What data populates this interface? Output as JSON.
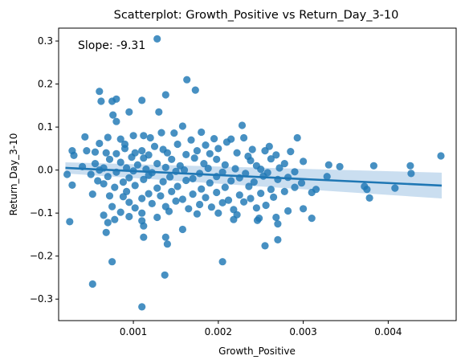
{
  "chart_data": {
    "type": "scatter",
    "title": "Scatterplot: Growth_Positive vs Return_Day_3-10",
    "xlabel": "Growth_Positive",
    "ylabel": "Return_Day_3-10",
    "annotation": "Slope: -9.31",
    "xlim": [
      0.00012,
      0.0048
    ],
    "ylim": [
      -0.35,
      0.33
    ],
    "x_ticks": [
      0.001,
      0.002,
      0.003,
      0.004
    ],
    "x_tick_labels": [
      "0.001",
      "0.002",
      "0.003",
      "0.004"
    ],
    "y_ticks": [
      -0.3,
      -0.2,
      -0.1,
      0.0,
      0.1,
      0.2,
      0.3
    ],
    "y_tick_labels": [
      "−0.3",
      "−0.2",
      "−0.1",
      "0.0",
      "0.1",
      "0.2",
      "0.3"
    ],
    "grid": false,
    "colors": {
      "points": "#1f77b4",
      "line": "#1f77b4",
      "band": "#a6c8e6"
    },
    "regression": {
      "x": [
        0.0002,
        0.00463
      ],
      "y": [
        0.005,
        -0.036
      ],
      "ci_upper": [
        0.018,
        -0.006
      ],
      "ci_lower": [
        -0.008,
        -0.066
      ]
    },
    "series": [
      {
        "points": [
          [
            0.00128,
            0.305
          ],
          [
            0.00163,
            0.21
          ],
          [
            0.00173,
            0.186
          ],
          [
            0.0006,
            0.183
          ],
          [
            0.0008,
            0.165
          ],
          [
            0.00062,
            0.16
          ],
          [
            0.00075,
            0.16
          ],
          [
            0.0011,
            0.162
          ],
          [
            0.00138,
            0.175
          ],
          [
            0.0013,
            0.135
          ],
          [
            0.00095,
            0.135
          ],
          [
            0.00076,
            0.128
          ],
          [
            0.0008,
            0.113
          ],
          [
            0.00228,
            0.104
          ],
          [
            0.00158,
            0.102
          ],
          [
            0.0018,
            0.088
          ],
          [
            0.00112,
            0.08
          ],
          [
            0.00133,
            0.087
          ],
          [
            0.00148,
            0.086
          ],
          [
            0.00043,
            0.077
          ],
          [
            0.0007,
            0.076
          ],
          [
            0.00085,
            0.072
          ],
          [
            0.001,
            0.08
          ],
          [
            0.0012,
            0.075
          ],
          [
            0.00168,
            0.07
          ],
          [
            0.00195,
            0.073
          ],
          [
            0.00215,
            0.072
          ],
          [
            0.0023,
            0.075
          ],
          [
            0.00293,
            0.075
          ],
          [
            0.0006,
            0.062
          ],
          [
            0.0009,
            0.06
          ],
          [
            0.00125,
            0.055
          ],
          [
            0.00152,
            0.06
          ],
          [
            0.00185,
            0.058
          ],
          [
            0.0021,
            0.065
          ],
          [
            0.0026,
            0.055
          ],
          [
            0.0009,
            0.05
          ],
          [
            0.0011,
            0.045
          ],
          [
            0.00135,
            0.048
          ],
          [
            0.00175,
            0.045
          ],
          [
            0.002,
            0.05
          ],
          [
            0.0024,
            0.048
          ],
          [
            0.00255,
            0.045
          ],
          [
            0.00285,
            0.043
          ],
          [
            0.00028,
            0.045
          ],
          [
            0.00045,
            0.045
          ],
          [
            0.00055,
            0.042
          ],
          [
            0.00068,
            0.04
          ],
          [
            0.0008,
            0.038
          ],
          [
            0.00102,
            0.04
          ],
          [
            0.00118,
            0.035
          ],
          [
            0.0014,
            0.04
          ],
          [
            0.00162,
            0.036
          ],
          [
            0.0019,
            0.038
          ],
          [
            0.00222,
            0.04
          ],
          [
            0.00235,
            0.032
          ],
          [
            0.00268,
            0.035
          ],
          [
            0.00462,
            0.033
          ],
          [
            0.0003,
            0.034
          ],
          [
            0.00072,
            0.025
          ],
          [
            0.00098,
            0.03
          ],
          [
            0.00112,
            0.028
          ],
          [
            0.00145,
            0.025
          ],
          [
            0.00172,
            0.028
          ],
          [
            0.00198,
            0.025
          ],
          [
            0.00238,
            0.022
          ],
          [
            0.00262,
            0.026
          ],
          [
            0.003,
            0.02
          ],
          [
            0.00055,
            0.015
          ],
          [
            0.00085,
            0.018
          ],
          [
            0.00105,
            0.012
          ],
          [
            0.00128,
            0.015
          ],
          [
            0.00155,
            0.01
          ],
          [
            0.00183,
            0.015
          ],
          [
            0.00208,
            0.012
          ],
          [
            0.00245,
            0.01
          ],
          [
            0.00278,
            0.015
          ],
          [
            0.0033,
            0.012
          ],
          [
            0.00343,
            0.008
          ],
          [
            0.00383,
            0.01
          ],
          [
            0.00426,
            0.01
          ],
          [
            0.0004,
            0.008
          ],
          [
            0.00065,
            0.005
          ],
          [
            0.00092,
            0.005
          ],
          [
            0.00115,
            0.002
          ],
          [
            0.00138,
            0.006
          ],
          [
            0.0016,
            0.0
          ],
          [
            0.00188,
            0.004
          ],
          [
            0.0022,
            0.003
          ],
          [
            0.0025,
            0.002
          ],
          [
            0.00272,
            0.005
          ],
          [
            0.0006,
            0.0
          ],
          [
            0.0008,
            -0.005
          ],
          [
            0.001,
            -0.002
          ],
          [
            0.00122,
            -0.006
          ],
          [
            0.0015,
            -0.003
          ],
          [
            0.00178,
            -0.008
          ],
          [
            0.00205,
            -0.005
          ],
          [
            0.00232,
            -0.008
          ],
          [
            0.00258,
            -0.006
          ],
          [
            0.0029,
            -0.004
          ],
          [
            0.00022,
            -0.01
          ],
          [
            0.0005,
            -0.01
          ],
          [
            0.00427,
            -0.008
          ],
          [
            0.0007,
            -0.015
          ],
          [
            0.00095,
            -0.018
          ],
          [
            0.00118,
            -0.012
          ],
          [
            0.00143,
            -0.016
          ],
          [
            0.0017,
            -0.02
          ],
          [
            0.00198,
            -0.015
          ],
          [
            0.00225,
            -0.018
          ],
          [
            0.00253,
            -0.014
          ],
          [
            0.00282,
            -0.017
          ],
          [
            0.00328,
            -0.015
          ],
          [
            0.00058,
            -0.025
          ],
          [
            0.00088,
            -0.028
          ],
          [
            0.00112,
            -0.022
          ],
          [
            0.00135,
            -0.027
          ],
          [
            0.00162,
            -0.024
          ],
          [
            0.0019,
            -0.03
          ],
          [
            0.00215,
            -0.025
          ],
          [
            0.00242,
            -0.028
          ],
          [
            0.0027,
            -0.022
          ],
          [
            0.00298,
            -0.03
          ],
          [
            0.00028,
            -0.035
          ],
          [
            0.00065,
            -0.032
          ],
          [
            0.00372,
            -0.038
          ],
          [
            0.00078,
            -0.04
          ],
          [
            0.00102,
            -0.036
          ],
          [
            0.00128,
            -0.042
          ],
          [
            0.00152,
            -0.038
          ],
          [
            0.0018,
            -0.044
          ],
          [
            0.00208,
            -0.04
          ],
          [
            0.00236,
            -0.038
          ],
          [
            0.00262,
            -0.045
          ],
          [
            0.0029,
            -0.04
          ],
          [
            0.00408,
            -0.042
          ],
          [
            0.00375,
            -0.045
          ],
          [
            0.00315,
            -0.045
          ],
          [
            0.00092,
            -0.05
          ],
          [
            0.00118,
            -0.055
          ],
          [
            0.00145,
            -0.05
          ],
          [
            0.0017,
            -0.056
          ],
          [
            0.00198,
            -0.052
          ],
          [
            0.00225,
            -0.058
          ],
          [
            0.0025,
            -0.054
          ],
          [
            0.00278,
            -0.05
          ],
          [
            0.0031,
            -0.052
          ],
          [
            0.00052,
            -0.056
          ],
          [
            0.00072,
            -0.06
          ],
          [
            0.00088,
            -0.062
          ],
          [
            0.0011,
            -0.066
          ],
          [
            0.00132,
            -0.06
          ],
          [
            0.00158,
            -0.068
          ],
          [
            0.00185,
            -0.064
          ],
          [
            0.00212,
            -0.07
          ],
          [
            0.00238,
            -0.066
          ],
          [
            0.00265,
            -0.063
          ],
          [
            0.00378,
            -0.065
          ],
          [
            0.00095,
            -0.075
          ],
          [
            0.00122,
            -0.078
          ],
          [
            0.0015,
            -0.072
          ],
          [
            0.00178,
            -0.08
          ],
          [
            0.00205,
            -0.076
          ],
          [
            0.0023,
            -0.074
          ],
          [
            0.00256,
            -0.082
          ],
          [
            0.00075,
            -0.085
          ],
          [
            0.00102,
            -0.088
          ],
          [
            0.00138,
            -0.085
          ],
          [
            0.00165,
            -0.09
          ],
          [
            0.00192,
            -0.086
          ],
          [
            0.00218,
            -0.092
          ],
          [
            0.00245,
            -0.088
          ],
          [
            0.00282,
            -0.095
          ],
          [
            0.003,
            -0.09
          ],
          [
            0.00085,
            -0.098
          ],
          [
            0.0011,
            -0.1
          ],
          [
            0.00142,
            -0.096
          ],
          [
            0.00175,
            -0.102
          ],
          [
            0.002,
            -0.1
          ],
          [
            0.00222,
            -0.104
          ],
          [
            0.00065,
            -0.105
          ],
          [
            0.00095,
            -0.108
          ],
          [
            0.00128,
            -0.11
          ],
          [
            0.00248,
            -0.112
          ],
          [
            0.00268,
            -0.11
          ],
          [
            0.0031,
            -0.112
          ],
          [
            0.00078,
            -0.115
          ],
          [
            0.0011,
            -0.118
          ],
          [
            0.00218,
            -0.115
          ],
          [
            0.00246,
            -0.117
          ],
          [
            0.00025,
            -0.12
          ],
          [
            0.0007,
            -0.122
          ],
          [
            0.00112,
            -0.13
          ],
          [
            0.0027,
            -0.125
          ],
          [
            0.00068,
            -0.145
          ],
          [
            0.00158,
            -0.138
          ],
          [
            0.00112,
            -0.156
          ],
          [
            0.00138,
            -0.156
          ],
          [
            0.0027,
            -0.162
          ],
          [
            0.0014,
            -0.172
          ],
          [
            0.00255,
            -0.176
          ],
          [
            0.00075,
            -0.213
          ],
          [
            0.00205,
            -0.213
          ],
          [
            0.00137,
            -0.244
          ],
          [
            0.00052,
            -0.265
          ],
          [
            0.0011,
            -0.318
          ]
        ]
      }
    ]
  }
}
